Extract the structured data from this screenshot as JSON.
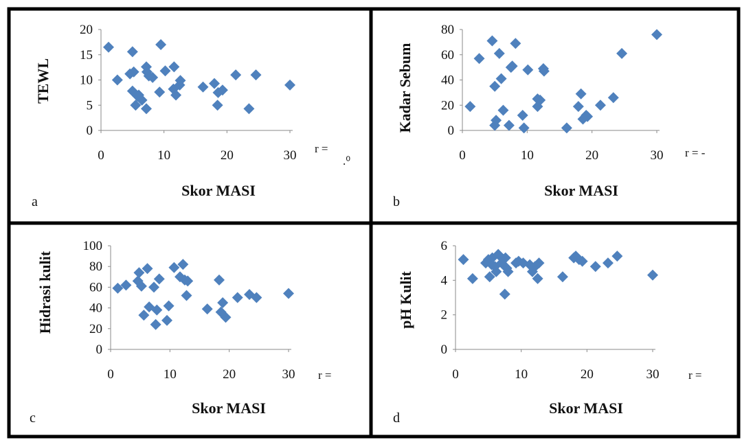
{
  "chart_data": [
    {
      "panel": "a",
      "type": "scatter",
      "xlabel": "Skor MASI",
      "ylabel": "TEWL",
      "r_text": "r =",
      "r_fragment": ".⁰",
      "xlim": [
        0,
        30
      ],
      "ylim": [
        0,
        20
      ],
      "xticks": [
        "0",
        "10",
        "20",
        "30"
      ],
      "yticks": [
        "0",
        "5",
        "10",
        "15",
        "20"
      ],
      "marker_color": "#4f81bd",
      "points": [
        [
          1.2,
          16.5
        ],
        [
          2.6,
          10
        ],
        [
          4.6,
          11.2
        ],
        [
          5.0,
          15.6
        ],
        [
          5.2,
          11.6
        ],
        [
          5.0,
          7.8
        ],
        [
          5.5,
          5.0
        ],
        [
          5.8,
          6.8
        ],
        [
          6.0,
          7.0
        ],
        [
          6.5,
          6.0
        ],
        [
          7.2,
          4.3
        ],
        [
          7.2,
          12.6
        ],
        [
          7.3,
          11.6
        ],
        [
          7.6,
          10.8
        ],
        [
          8.2,
          10.5
        ],
        [
          9.3,
          7.6
        ],
        [
          9.5,
          17
        ],
        [
          10.2,
          11.8
        ],
        [
          11.5,
          8.2
        ],
        [
          11.6,
          12.6
        ],
        [
          11.9,
          7.0
        ],
        [
          12.5,
          9.0
        ],
        [
          12.6,
          9.9
        ],
        [
          16.2,
          8.6
        ],
        [
          18.0,
          9.3
        ],
        [
          18.5,
          5.0
        ],
        [
          18.6,
          7.5
        ],
        [
          19.3,
          8.0
        ],
        [
          21.4,
          11.0
        ],
        [
          23.5,
          4.3
        ],
        [
          24.6,
          11.0
        ],
        [
          30.0,
          9.0
        ]
      ]
    },
    {
      "panel": "b",
      "type": "scatter",
      "xlabel": "Skor MASI",
      "ylabel": "Kadar Sebum",
      "r_text": "r = -",
      "xlim": [
        0,
        30
      ],
      "ylim": [
        0,
        80
      ],
      "xticks": [
        "0",
        "10",
        "20",
        "30"
      ],
      "yticks": [
        "0",
        "20",
        "40",
        "60",
        "80"
      ],
      "marker_color": "#4f81bd",
      "points": [
        [
          1.2,
          19
        ],
        [
          2.6,
          57
        ],
        [
          4.6,
          71
        ],
        [
          5.0,
          35
        ],
        [
          5.0,
          4
        ],
        [
          5.2,
          8
        ],
        [
          5.7,
          61
        ],
        [
          6.0,
          41
        ],
        [
          6.3,
          16
        ],
        [
          7.2,
          4
        ],
        [
          7.5,
          50
        ],
        [
          7.7,
          51
        ],
        [
          8.2,
          69
        ],
        [
          9.3,
          12
        ],
        [
          9.5,
          2
        ],
        [
          10.1,
          48
        ],
        [
          11.6,
          25
        ],
        [
          11.6,
          19
        ],
        [
          12.0,
          24
        ],
        [
          12.5,
          49
        ],
        [
          12.6,
          47
        ],
        [
          16.1,
          2
        ],
        [
          17.9,
          19
        ],
        [
          18.3,
          29
        ],
        [
          18.6,
          9
        ],
        [
          19.1,
          12
        ],
        [
          19.3,
          11
        ],
        [
          21.3,
          20
        ],
        [
          23.3,
          26
        ],
        [
          24.6,
          61
        ],
        [
          30.0,
          76
        ]
      ]
    },
    {
      "panel": "c",
      "type": "scatter",
      "xlabel": "Skor MASI",
      "ylabel": "Hidrasi kulit",
      "r_text": "r =",
      "xlim": [
        0,
        30
      ],
      "ylim": [
        0,
        100
      ],
      "xticks": [
        "0",
        "10",
        "20",
        "30"
      ],
      "yticks": [
        "0",
        "20",
        "40",
        "60",
        "80",
        "100"
      ],
      "marker_color": "#4f81bd",
      "points": [
        [
          1.2,
          59
        ],
        [
          2.6,
          62
        ],
        [
          4.6,
          66
        ],
        [
          4.8,
          74
        ],
        [
          5.2,
          61
        ],
        [
          5.6,
          33
        ],
        [
          6.2,
          78
        ],
        [
          6.5,
          41
        ],
        [
          7.3,
          60
        ],
        [
          7.6,
          24
        ],
        [
          7.8,
          38
        ],
        [
          8.2,
          68
        ],
        [
          9.5,
          28
        ],
        [
          9.8,
          42
        ],
        [
          10.7,
          79
        ],
        [
          11.7,
          70
        ],
        [
          12.2,
          82
        ],
        [
          12.5,
          67
        ],
        [
          12.8,
          52
        ],
        [
          13.0,
          66
        ],
        [
          16.3,
          39
        ],
        [
          18.3,
          67
        ],
        [
          18.6,
          36
        ],
        [
          18.9,
          45
        ],
        [
          19.4,
          31
        ],
        [
          21.4,
          50
        ],
        [
          23.4,
          53
        ],
        [
          24.6,
          50
        ],
        [
          30.0,
          54
        ]
      ]
    },
    {
      "panel": "d",
      "type": "scatter",
      "xlabel": "Skor MASI",
      "ylabel": "pH Kulit",
      "r_text": "r  =",
      "xlim": [
        0,
        30
      ],
      "ylim": [
        0,
        6
      ],
      "xticks": [
        "0",
        "10",
        "20",
        "30"
      ],
      "yticks": [
        "0",
        "2",
        "4",
        "6"
      ],
      "marker_color": "#4f81bd",
      "points": [
        [
          1.2,
          5.2
        ],
        [
          2.6,
          4.1
        ],
        [
          4.6,
          5.0
        ],
        [
          5.0,
          5.2
        ],
        [
          5.2,
          4.2
        ],
        [
          5.5,
          4.9
        ],
        [
          5.6,
          5.3
        ],
        [
          6.0,
          4.8
        ],
        [
          6.2,
          4.5
        ],
        [
          6.5,
          5.5
        ],
        [
          7.0,
          5.0
        ],
        [
          7.3,
          5.2
        ],
        [
          7.5,
          3.2
        ],
        [
          7.6,
          5.3
        ],
        [
          7.8,
          4.7
        ],
        [
          8.0,
          4.5
        ],
        [
          9.2,
          5.0
        ],
        [
          9.6,
          5.1
        ],
        [
          10.3,
          5.0
        ],
        [
          11.3,
          4.9
        ],
        [
          11.7,
          4.5
        ],
        [
          12.1,
          4.8
        ],
        [
          12.5,
          4.1
        ],
        [
          12.7,
          5.0
        ],
        [
          16.3,
          4.2
        ],
        [
          18.0,
          5.3
        ],
        [
          18.3,
          5.4
        ],
        [
          18.8,
          5.2
        ],
        [
          19.3,
          5.1
        ],
        [
          21.3,
          4.8
        ],
        [
          23.2,
          5.0
        ],
        [
          24.6,
          5.4
        ],
        [
          30.0,
          4.3
        ]
      ]
    }
  ],
  "panel_labels": [
    "a",
    "b",
    "c",
    "d"
  ]
}
